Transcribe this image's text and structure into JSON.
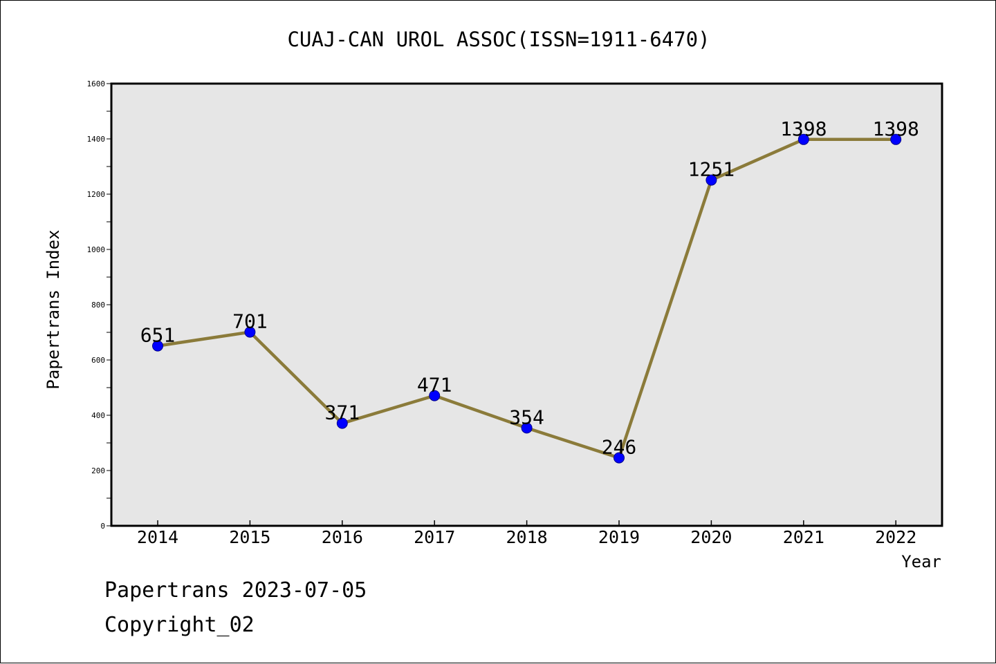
{
  "chart_data": {
    "type": "line",
    "title": "CUAJ-CAN UROL ASSOC(ISSN=1911-6470)",
    "xlabel": "Year",
    "ylabel": "Papertrans Index",
    "categories": [
      "2014",
      "2015",
      "2016",
      "2017",
      "2018",
      "2019",
      "2020",
      "2021",
      "2022"
    ],
    "values": [
      651,
      701,
      371,
      471,
      354,
      246,
      1251,
      1398,
      1398
    ],
    "data_labels": [
      "651",
      "701",
      "371",
      "471",
      "354",
      "246",
      "1251",
      "1398",
      "1398"
    ],
    "ylim": [
      0,
      1600
    ],
    "yticks": [
      0,
      200,
      400,
      600,
      800,
      1000,
      1200,
      1400,
      1600
    ],
    "ytick_labels": [
      "0",
      "200",
      "400",
      "600",
      "800",
      "1000",
      "1200",
      "1400",
      "1600"
    ],
    "grid": false,
    "legend": "none"
  },
  "footer": {
    "line1": "Papertrans 2023-07-05",
    "line2": "Copyright_02"
  },
  "colors": {
    "line": "#8B7B3A",
    "marker": "#0000FF",
    "marker_edge": "#00008B",
    "plot_background": "#E6E6E6",
    "frame": "#000000"
  }
}
